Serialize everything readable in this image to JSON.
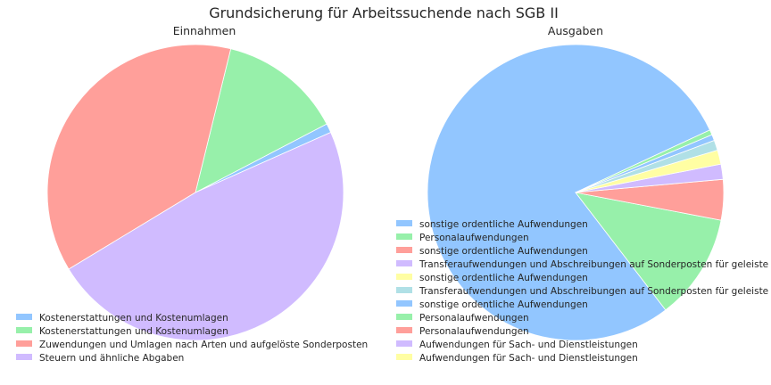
{
  "title": "Grundsicherung für Arbeitssuchende nach SGB II",
  "chart_data": [
    {
      "type": "pie",
      "title": "Einnahmen",
      "legend_position": "lower-left",
      "start_angle_deg": 24,
      "slices": [
        {
          "label": "Kostenerstattungen und Kostenumlagen",
          "value": 1.0,
          "color": "#92c6ff"
        },
        {
          "label": "Kostenerstattungen und Kostenumlagen",
          "value": 13.5,
          "color": "#97f0aa"
        },
        {
          "label": "Zuwendungen und Umlagen nach Arten und aufgelöste Sonderposten",
          "value": 37.5,
          "color": "#ff9f9a"
        },
        {
          "label": "Steuern und ähnliche Abgaben",
          "value": 48.0,
          "color": "#d0bbff"
        }
      ]
    },
    {
      "type": "pie",
      "title": "Ausgaben",
      "legend_position": "lower-left",
      "start_angle_deg": 25,
      "slices": [
        {
          "label": "sonstige ordentliche Aufwendungen",
          "value": 71.0,
          "color": "#92c6ff"
        },
        {
          "label": "Personalaufwendungen",
          "value": 10.5,
          "color": "#97f0aa"
        },
        {
          "label": "sonstige ordentliche Aufwendungen",
          "value": 4.0,
          "color": "#ff9f9a"
        },
        {
          "label": "Transferaufwendungen und Abschreibungen auf Sonderposten für geleiste",
          "value": 1.5,
          "color": "#d0bbff"
        },
        {
          "label": "sonstige ordentliche Aufwendungen",
          "value": 1.4,
          "color": "#fffea3"
        },
        {
          "label": "Transferaufwendungen und Abschreibungen auf Sonderposten für geleiste",
          "value": 1.0,
          "color": "#b0e0e6"
        },
        {
          "label": "sonstige ordentliche Aufwendungen",
          "value": 0.6,
          "color": "#92c6ff"
        },
        {
          "label": "Personalaufwendungen",
          "value": 0.5,
          "color": "#97f0aa"
        },
        {
          "label": "Personalaufwendungen",
          "value": 0.0,
          "color": "#ff9f9a"
        },
        {
          "label": "Aufwendungen für Sach- und Dienstleistungen",
          "value": 0.0,
          "color": "#d0bbff"
        },
        {
          "label": "Aufwendungen für Sach- und Dienstleistungen",
          "value": 0.0,
          "color": "#fffea3"
        }
      ]
    }
  ]
}
